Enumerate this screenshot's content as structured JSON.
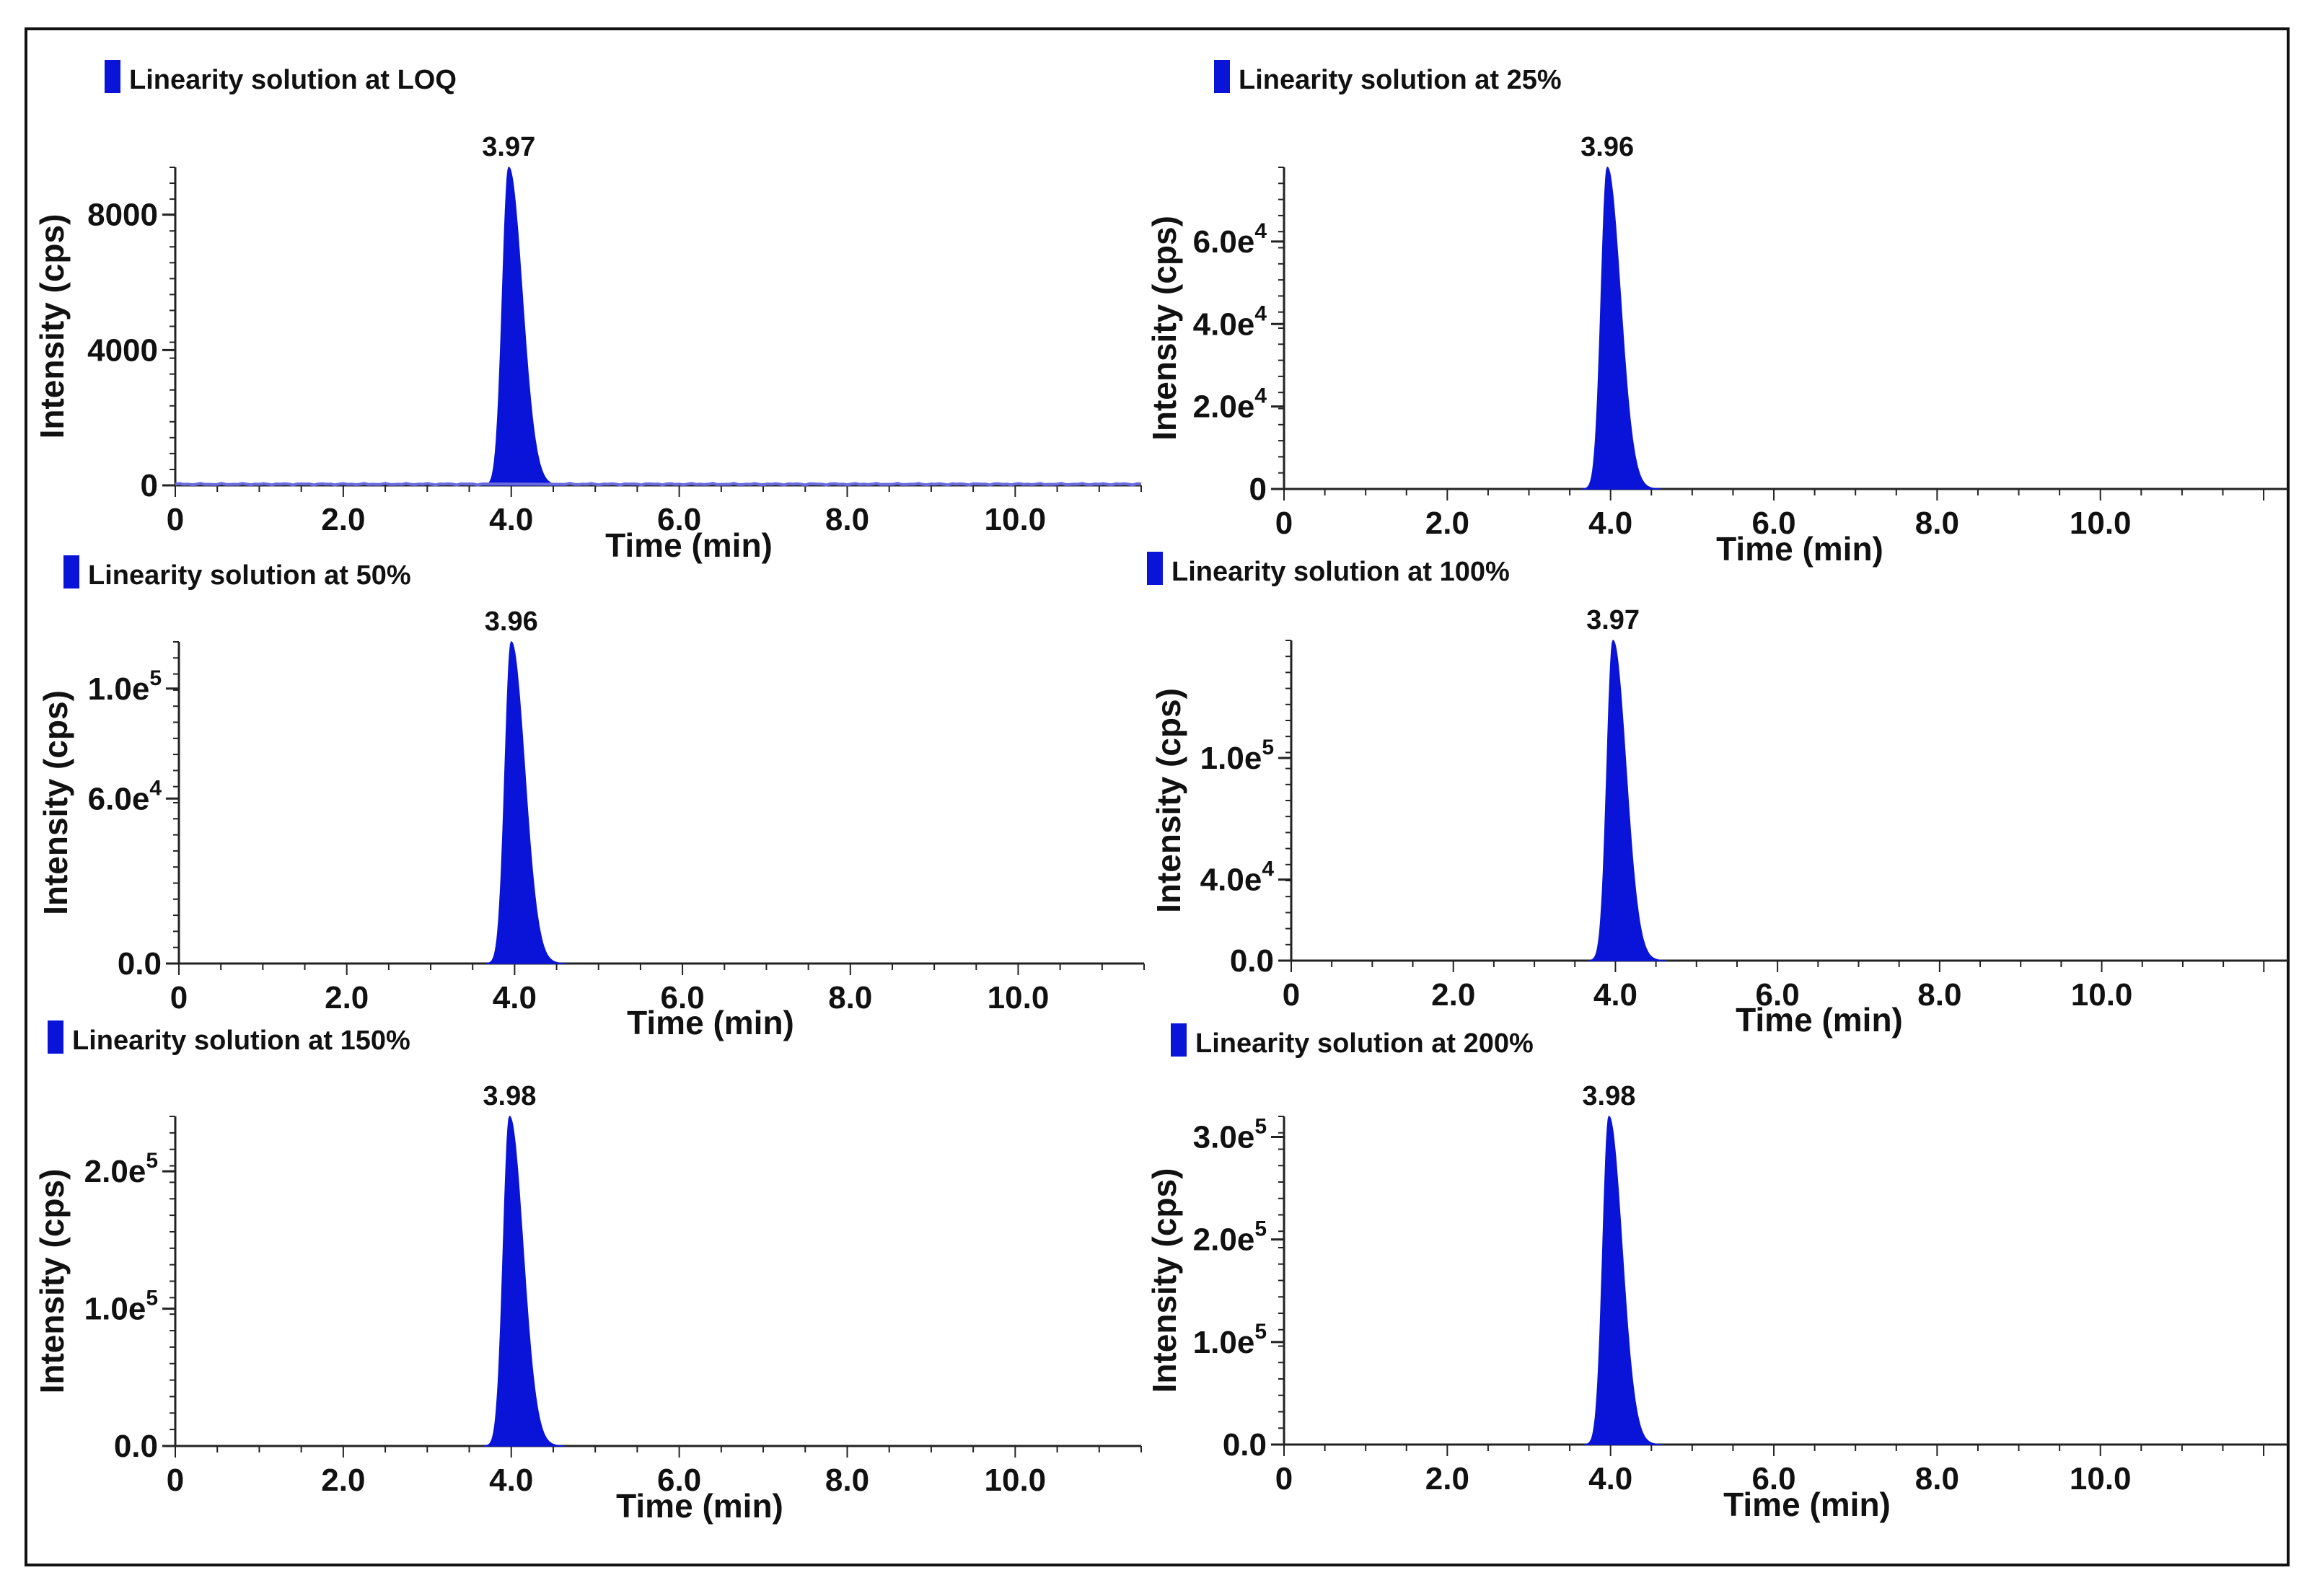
{
  "figure": {
    "colors": {
      "accent": "#0a14d8",
      "baseline_noise": "#6b6be0",
      "text": "#111111"
    },
    "xlabel": "Time (min)",
    "ylabel": "Intensity (cps)"
  },
  "chart_data": [
    {
      "type": "area",
      "title": "Linearity solution at LOQ",
      "xlabel": "Time (min)",
      "ylabel": "Intensity (cps)",
      "xlim": [
        0,
        11.5
      ],
      "ylim": [
        0,
        9400
      ],
      "x_ticks": [
        0,
        2,
        4,
        6,
        8,
        10
      ],
      "x_tick_labels": [
        "0",
        "2.0",
        "4.0",
        "6.0",
        "8.0",
        "10.0"
      ],
      "y_ticks": [
        0,
        4000,
        8000
      ],
      "y_tick_labels": [
        "0",
        "4000",
        "8000"
      ],
      "series": [
        {
          "name": "Linearity solution at LOQ",
          "peak_rt": 3.97,
          "peak_height": 9400,
          "baseline_noise": 60
        }
      ],
      "annotations": [
        {
          "x": 3.97,
          "label": "3.97"
        }
      ]
    },
    {
      "type": "area",
      "title": "Linearity solution at 25%",
      "xlabel": "Time (min)",
      "ylabel": "Intensity (cps)",
      "xlim": [
        0,
        12.3
      ],
      "ylim": [
        0,
        78000
      ],
      "x_ticks": [
        0,
        2,
        4,
        6,
        8,
        10
      ],
      "x_tick_labels": [
        "0",
        "2.0",
        "4.0",
        "6.0",
        "8.0",
        "10.0"
      ],
      "y_ticks": [
        0,
        20000,
        40000,
        60000
      ],
      "y_tick_labels": [
        [
          "0",
          ""
        ],
        [
          "2.0e",
          "4"
        ],
        [
          "4.0e",
          "4"
        ],
        [
          "6.0e",
          "4"
        ]
      ],
      "series": [
        {
          "name": "Linearity solution at 25%",
          "peak_rt": 3.96,
          "peak_height": 78000
        }
      ],
      "annotations": [
        {
          "x": 3.96,
          "label": "3.96"
        }
      ]
    },
    {
      "type": "area",
      "title": "Linearity solution at 50%",
      "xlabel": "Time (min)",
      "ylabel": "Intensity (cps)",
      "xlim": [
        0,
        11.5
      ],
      "ylim": [
        0,
        117000
      ],
      "x_ticks": [
        0,
        2,
        4,
        6,
        8,
        10
      ],
      "x_tick_labels": [
        "0",
        "2.0",
        "4.0",
        "6.0",
        "8.0",
        "10.0"
      ],
      "y_ticks": [
        0,
        60000,
        100000
      ],
      "y_tick_labels": [
        [
          "0.0",
          ""
        ],
        [
          "6.0e",
          "4"
        ],
        [
          "1.0e",
          "5"
        ]
      ],
      "series": [
        {
          "name": "Linearity solution at 50%",
          "peak_rt": 3.96,
          "peak_height": 117000
        }
      ],
      "annotations": [
        {
          "x": 3.96,
          "label": "3.96"
        }
      ]
    },
    {
      "type": "area",
      "title": "Linearity solution at 100%",
      "xlabel": "Time (min)",
      "ylabel": "Intensity (cps)",
      "xlim": [
        0,
        12.3
      ],
      "ylim": [
        0,
        158000
      ],
      "x_ticks": [
        0,
        2,
        4,
        6,
        8,
        10
      ],
      "x_tick_labels": [
        "0",
        "2.0",
        "4.0",
        "6.0",
        "8.0",
        "10.0"
      ],
      "y_ticks": [
        0,
        40000,
        100000
      ],
      "y_tick_labels": [
        [
          "0.0",
          ""
        ],
        [
          "4.0e",
          "4"
        ],
        [
          "1.0e",
          "5"
        ]
      ],
      "series": [
        {
          "name": "Linearity solution at 100%",
          "peak_rt": 3.97,
          "peak_height": 158000
        }
      ],
      "annotations": [
        {
          "x": 3.97,
          "label": "3.97"
        }
      ]
    },
    {
      "type": "area",
      "title": "Linearity solution at 150%",
      "xlabel": "Time (min)",
      "ylabel": "Intensity (cps)",
      "xlim": [
        0,
        11.5
      ],
      "ylim": [
        0,
        240000
      ],
      "x_ticks": [
        0,
        2,
        4,
        6,
        8,
        10
      ],
      "x_tick_labels": [
        "0",
        "2.0",
        "4.0",
        "6.0",
        "8.0",
        "10.0"
      ],
      "y_ticks": [
        0,
        100000,
        200000
      ],
      "y_tick_labels": [
        [
          "0.0",
          ""
        ],
        [
          "1.0e",
          "5"
        ],
        [
          "2.0e",
          "5"
        ]
      ],
      "series": [
        {
          "name": "Linearity solution at 150%",
          "peak_rt": 3.98,
          "peak_height": 240000
        }
      ],
      "annotations": [
        {
          "x": 3.98,
          "label": "3.98"
        }
      ]
    },
    {
      "type": "area",
      "title": "Linearity solution at 200%",
      "xlabel": "Time (min)",
      "ylabel": "Intensity (cps)",
      "xlim": [
        0,
        12.3
      ],
      "ylim": [
        0,
        320000
      ],
      "x_ticks": [
        0,
        2,
        4,
        6,
        8,
        10
      ],
      "x_tick_labels": [
        "0",
        "2.0",
        "4.0",
        "6.0",
        "8.0",
        "10.0"
      ],
      "y_ticks": [
        0,
        100000,
        200000,
        300000
      ],
      "y_tick_labels": [
        [
          "0.0",
          ""
        ],
        [
          "1.0e",
          "5"
        ],
        [
          "2.0e",
          "5"
        ],
        [
          "3.0e",
          "5"
        ]
      ],
      "series": [
        {
          "name": "Linearity solution at 200%",
          "peak_rt": 3.98,
          "peak_height": 320000
        }
      ],
      "annotations": [
        {
          "x": 3.98,
          "label": "3.98"
        }
      ]
    }
  ]
}
